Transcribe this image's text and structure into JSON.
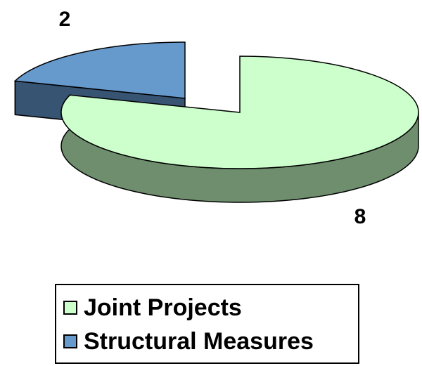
{
  "chart_data": {
    "type": "pie",
    "categories": [
      "Joint Projects",
      "Structural Measures"
    ],
    "values": [
      8,
      2
    ],
    "data_labels": [
      "8",
      "2"
    ],
    "colors": {
      "Joint Projects": {
        "top": "#ccffcc",
        "side": "#6e8e6e"
      },
      "Structural Measures": {
        "top": "#6699cc",
        "side": "#375473"
      }
    },
    "style": "3d-exploded",
    "legend": {
      "position": "bottom",
      "entries": [
        "Joint Projects",
        "Structural Measures"
      ]
    }
  }
}
